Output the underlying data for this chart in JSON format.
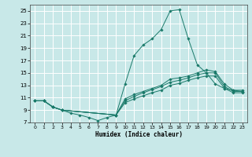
{
  "background_color": "#c8e8e8",
  "grid_color": "#ffffff",
  "line_color": "#1a7a6a",
  "xlabel": "Humidex (Indice chaleur)",
  "xlim": [
    -0.5,
    23.5
  ],
  "ylim": [
    7,
    26
  ],
  "yticks": [
    7,
    9,
    11,
    13,
    15,
    17,
    19,
    21,
    23,
    25
  ],
  "xticks": [
    0,
    1,
    2,
    3,
    4,
    5,
    6,
    7,
    8,
    9,
    10,
    11,
    12,
    13,
    14,
    15,
    16,
    17,
    18,
    19,
    20,
    21,
    22,
    23
  ],
  "series": [
    {
      "x": [
        0,
        1,
        2,
        3,
        4,
        5,
        6,
        7,
        8,
        9,
        10,
        11,
        12,
        13,
        14,
        15,
        16,
        17,
        18,
        19,
        20,
        21,
        22,
        23
      ],
      "y": [
        10.5,
        10.5,
        9.5,
        9.0,
        8.5,
        8.2,
        7.8,
        7.3,
        7.8,
        8.2,
        13.2,
        17.8,
        19.5,
        20.5,
        22.0,
        25.0,
        25.2,
        20.5,
        16.3,
        15.0,
        13.2,
        12.5,
        12.2,
        12.0
      ]
    },
    {
      "x": [
        0,
        1,
        2,
        3,
        9,
        10,
        11,
        12,
        13,
        14,
        15,
        16,
        17,
        18,
        19,
        20,
        21,
        22,
        23
      ],
      "y": [
        10.5,
        10.5,
        9.5,
        9.0,
        8.2,
        10.8,
        11.5,
        12.0,
        12.5,
        13.0,
        14.0,
        14.2,
        14.5,
        15.0,
        15.5,
        15.2,
        13.2,
        12.2,
        12.2
      ]
    },
    {
      "x": [
        0,
        1,
        2,
        3,
        9,
        10,
        11,
        12,
        13,
        14,
        15,
        16,
        17,
        18,
        19,
        20,
        21,
        22,
        23
      ],
      "y": [
        10.5,
        10.5,
        9.5,
        9.0,
        8.2,
        10.5,
        11.2,
        11.8,
        12.3,
        12.8,
        13.5,
        13.8,
        14.2,
        14.7,
        15.0,
        15.0,
        12.8,
        12.0,
        12.0
      ]
    },
    {
      "x": [
        0,
        1,
        2,
        3,
        9,
        10,
        11,
        12,
        13,
        14,
        15,
        16,
        17,
        18,
        19,
        20,
        21,
        22,
        23
      ],
      "y": [
        10.5,
        10.5,
        9.5,
        9.0,
        8.2,
        10.2,
        10.8,
        11.3,
        11.8,
        12.2,
        13.0,
        13.3,
        13.8,
        14.2,
        14.5,
        14.5,
        12.5,
        11.8,
        11.8
      ]
    }
  ],
  "figsize": [
    3.2,
    2.0
  ],
  "dpi": 100
}
